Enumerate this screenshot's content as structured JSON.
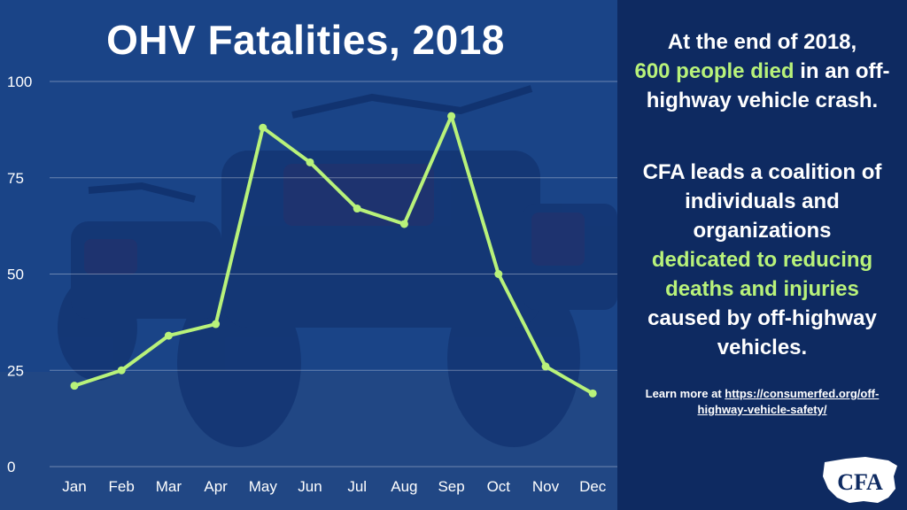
{
  "chart_data": {
    "type": "line",
    "title": "OHV Fatalities, 2018",
    "categories": [
      "Jan",
      "Feb",
      "Mar",
      "Apr",
      "May",
      "Jun",
      "Jul",
      "Aug",
      "Sep",
      "Oct",
      "Nov",
      "Dec"
    ],
    "values": [
      21,
      25,
      34,
      37,
      88,
      79,
      67,
      63,
      91,
      50,
      26,
      19
    ],
    "ylim": [
      0,
      100
    ],
    "yticks": [
      "0",
      "25",
      "50",
      "75",
      "100"
    ],
    "grid": true,
    "xlabel": "",
    "ylabel": "",
    "line_color": "#b8f27a"
  },
  "side": {
    "p1_a": "At the end of 2018,",
    "p1_hl": "600 people died",
    "p1_b": " in an off-highway vehicle crash.",
    "p2_a": "CFA leads a coalition of individuals and organizations",
    "p2_hl": "dedicated to reducing deaths and injuries",
    "p2_b": "caused by off-highway vehicles.",
    "learn_prefix": "Learn more at ",
    "learn_link": "https://consumerfed.org/off-highway-vehicle-safety/"
  },
  "logo": {
    "text": "CFA"
  },
  "colors": {
    "accent": "#b8f27a",
    "panel": "#0e2a61",
    "overlay": "#123a82"
  }
}
